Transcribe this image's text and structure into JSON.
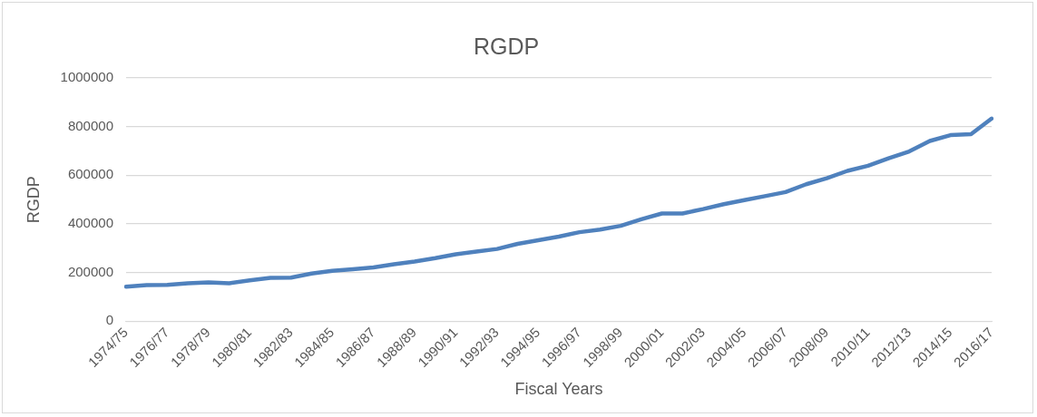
{
  "chart_data": {
    "type": "line",
    "title": "RGDP",
    "xlabel": "Fiscal Years",
    "ylabel": "RGDP",
    "categories": [
      "1974/75",
      null,
      "1976/77",
      null,
      "1978/79",
      null,
      "1980/81",
      null,
      "1982/83",
      null,
      "1984/85",
      null,
      "1986/87",
      null,
      "1988/89",
      null,
      "1990/91",
      null,
      "1992/93",
      null,
      "1994/95",
      null,
      "1996/97",
      null,
      "1998/99",
      null,
      "2000/01",
      null,
      "2002/03",
      null,
      "2004/05",
      null,
      "2006/07",
      null,
      "2008/09",
      null,
      "2010/11",
      null,
      "2012/13",
      null,
      "2014/15",
      null,
      "2016/17"
    ],
    "series": [
      {
        "color": "#4f81bd",
        "values": [
          142000,
          148000,
          149000,
          156000,
          160000,
          156000,
          168000,
          178000,
          179000,
          196000,
          207000,
          214000,
          221000,
          234000,
          245000,
          259000,
          275000,
          286000,
          297000,
          318000,
          333000,
          348000,
          366000,
          377000,
          392000,
          419000,
          443000,
          443000,
          461000,
          481000,
          498000,
          514000,
          531000,
          563000,
          588000,
          618000,
          639000,
          670000,
          698000,
          741000,
          765000,
          769000,
          833000
        ]
      }
    ],
    "ylim": [
      0,
      1000000
    ],
    "yticks": [
      0,
      200000,
      400000,
      600000,
      800000,
      1000000
    ],
    "grid": "y",
    "legend": false,
    "marker": "none",
    "line_style": "solid"
  }
}
